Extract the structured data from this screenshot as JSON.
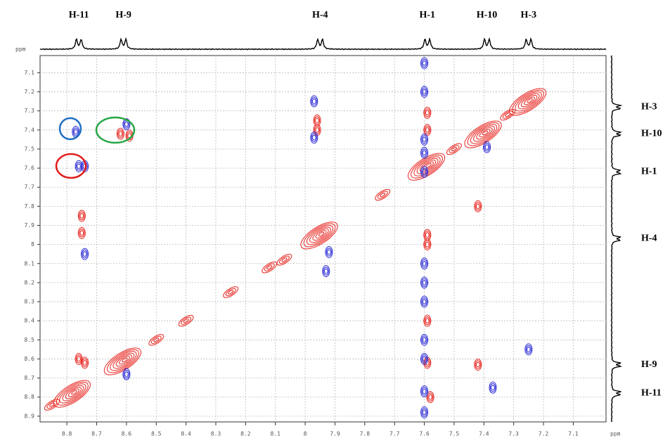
{
  "chart_data": {
    "type": "contour",
    "xlim": [
      8.89,
      6.99
    ],
    "ylim": [
      7.01,
      8.93
    ],
    "xticks": [
      8.8,
      8.7,
      8.6,
      8.5,
      8.4,
      8.3,
      8.2,
      8.1,
      8.0,
      7.9,
      7.8,
      7.7,
      7.6,
      7.5,
      7.4,
      7.3,
      7.2,
      7.1
    ],
    "yticks": [
      7.1,
      7.2,
      7.3,
      7.4,
      7.5,
      7.6,
      7.7,
      7.8,
      7.9,
      8.0,
      8.1,
      8.2,
      8.3,
      8.4,
      8.5,
      8.6,
      8.7,
      8.8,
      8.9
    ],
    "x_label": "ppm",
    "y_label": "ppm",
    "grid": true,
    "top_labels": [
      {
        "label": "H-11",
        "x": 8.76
      },
      {
        "label": "H-9",
        "x": 8.61
      },
      {
        "label": "H-4",
        "x": 7.95
      },
      {
        "label": "H-1",
        "x": 7.59
      },
      {
        "label": "H-10",
        "x": 7.39
      },
      {
        "label": "H-3",
        "x": 7.25
      }
    ],
    "right_labels": [
      {
        "label": "H-3",
        "y": 7.28
      },
      {
        "label": "H-10",
        "y": 7.42
      },
      {
        "label": "H-1",
        "y": 7.62
      },
      {
        "label": "H-4",
        "y": 7.97
      },
      {
        "label": "H-9",
        "y": 8.63
      },
      {
        "label": "H-11",
        "y": 8.78
      }
    ],
    "series": [
      {
        "color": "#e8231d",
        "x": [
          8.78,
          8.61,
          7.95,
          7.59,
          7.4,
          7.25,
          8.85,
          8.5,
          8.12,
          8.07,
          7.5,
          7.32,
          8.62,
          8.59,
          7.96,
          7.96,
          7.59,
          7.59,
          7.59,
          7.59,
          7.59,
          7.59,
          7.58,
          8.75,
          8.76,
          8.74,
          7.42,
          8.25,
          7.74,
          8.4,
          7.42,
          8.75
        ],
        "values": [
          8.78,
          8.61,
          7.95,
          7.59,
          7.42,
          7.25,
          8.84,
          8.5,
          8.12,
          8.08,
          7.5,
          7.32,
          7.42,
          7.43,
          7.4,
          7.35,
          7.31,
          7.4,
          7.95,
          8.0,
          8.4,
          8.62,
          8.8,
          7.94,
          8.6,
          8.62,
          8.63,
          8.25,
          7.74,
          8.4,
          7.8,
          7.85
        ]
      },
      {
        "color": "#2a2ad6",
        "x": [
          8.77,
          8.76,
          8.74,
          8.6,
          8.6,
          7.97,
          7.97,
          7.92,
          7.93,
          7.6,
          7.6,
          7.6,
          7.6,
          7.6,
          7.6,
          7.6,
          7.6,
          7.6,
          7.6,
          7.6,
          7.37,
          7.25,
          7.39,
          8.74,
          7.6
        ],
        "values": [
          7.41,
          7.59,
          7.59,
          7.37,
          8.68,
          7.25,
          7.44,
          8.04,
          8.14,
          7.05,
          7.2,
          7.45,
          7.52,
          7.62,
          8.1,
          8.2,
          8.3,
          8.5,
          8.6,
          8.77,
          8.75,
          8.55,
          7.49,
          8.05,
          8.88
        ]
      }
    ]
  }
}
